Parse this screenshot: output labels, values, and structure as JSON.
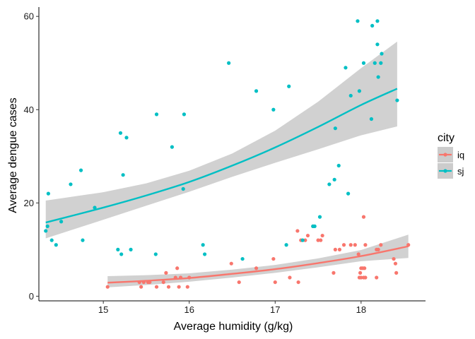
{
  "chart_data": {
    "type": "scatter",
    "xlabel": "Average humidity (g/kg)",
    "ylabel": "Average dengue cases",
    "xlim": [
      14.25,
      18.75
    ],
    "ylim": [
      -1,
      62
    ],
    "x_ticks": [
      15,
      16,
      17,
      18
    ],
    "y_ticks": [
      0,
      20,
      40,
      60
    ],
    "grid": false,
    "legend": {
      "title": "city",
      "placement": "right"
    },
    "series": [
      {
        "name": "iq",
        "color": "#F8766D",
        "points": [
          [
            15.05,
            2
          ],
          [
            15.42,
            3
          ],
          [
            15.44,
            2
          ],
          [
            15.47,
            3
          ],
          [
            15.52,
            3
          ],
          [
            15.54,
            3
          ],
          [
            15.62,
            2
          ],
          [
            15.7,
            3
          ],
          [
            15.73,
            5
          ],
          [
            15.76,
            2
          ],
          [
            15.84,
            4
          ],
          [
            15.86,
            6
          ],
          [
            15.88,
            2
          ],
          [
            15.9,
            4
          ],
          [
            15.98,
            2
          ],
          [
            16.0,
            4
          ],
          [
            16.49,
            7
          ],
          [
            16.58,
            3
          ],
          [
            16.78,
            6
          ],
          [
            16.98,
            8
          ],
          [
            17.0,
            3
          ],
          [
            17.17,
            4
          ],
          [
            17.26,
            14
          ],
          [
            17.27,
            3
          ],
          [
            17.3,
            12
          ],
          [
            17.35,
            12
          ],
          [
            17.38,
            13
          ],
          [
            17.44,
            15
          ],
          [
            17.5,
            12
          ],
          [
            17.53,
            12
          ],
          [
            17.55,
            13
          ],
          [
            17.68,
            5
          ],
          [
            17.7,
            10
          ],
          [
            17.75,
            10
          ],
          [
            17.8,
            11
          ],
          [
            17.88,
            11
          ],
          [
            17.93,
            11
          ],
          [
            17.97,
            9
          ],
          [
            17.98,
            4
          ],
          [
            17.99,
            5
          ],
          [
            18.0,
            6
          ],
          [
            18.0,
            4
          ],
          [
            18.02,
            6
          ],
          [
            18.03,
            17
          ],
          [
            18.03,
            4
          ],
          [
            18.04,
            6
          ],
          [
            18.05,
            4
          ],
          [
            18.05,
            11
          ],
          [
            18.18,
            4
          ],
          [
            18.18,
            10
          ],
          [
            18.2,
            10
          ],
          [
            18.23,
            11
          ],
          [
            18.38,
            8
          ],
          [
            18.4,
            7
          ],
          [
            18.41,
            5
          ],
          [
            18.55,
            11
          ]
        ],
        "fit_x": [
          15.05,
          15.5,
          16.0,
          16.5,
          17.0,
          17.5,
          18.0,
          18.55
        ],
        "fit_y": [
          2.9,
          3.3,
          3.9,
          4.8,
          5.8,
          7.1,
          8.6,
          10.7
        ],
        "ci_lower": [
          1.9,
          2.4,
          3.1,
          4.0,
          5.0,
          6.2,
          7.5,
          8.2
        ],
        "ci_upper": [
          4.3,
          4.5,
          4.9,
          5.7,
          6.7,
          8.1,
          9.9,
          13.2
        ]
      },
      {
        "name": "sj",
        "color": "#00BFC4",
        "points": [
          [
            14.33,
            14
          ],
          [
            14.35,
            15
          ],
          [
            14.36,
            22
          ],
          [
            14.4,
            12
          ],
          [
            14.45,
            11
          ],
          [
            14.51,
            16
          ],
          [
            14.62,
            24
          ],
          [
            14.74,
            27
          ],
          [
            14.76,
            12
          ],
          [
            14.9,
            19
          ],
          [
            15.17,
            10
          ],
          [
            15.2,
            35
          ],
          [
            15.21,
            9
          ],
          [
            15.23,
            26
          ],
          [
            15.27,
            34
          ],
          [
            15.32,
            10
          ],
          [
            15.61,
            9
          ],
          [
            15.62,
            39
          ],
          [
            15.8,
            32
          ],
          [
            15.93,
            23
          ],
          [
            15.94,
            39
          ],
          [
            16.16,
            11
          ],
          [
            16.18,
            9
          ],
          [
            16.46,
            50
          ],
          [
            16.62,
            8
          ],
          [
            16.78,
            44
          ],
          [
            16.98,
            40
          ],
          [
            17.13,
            11
          ],
          [
            17.16,
            45
          ],
          [
            17.32,
            12
          ],
          [
            17.44,
            15
          ],
          [
            17.46,
            15
          ],
          [
            17.52,
            17
          ],
          [
            17.63,
            24
          ],
          [
            17.69,
            25
          ],
          [
            17.7,
            36
          ],
          [
            17.74,
            28
          ],
          [
            17.82,
            49
          ],
          [
            17.85,
            22
          ],
          [
            17.88,
            43
          ],
          [
            17.96,
            59
          ],
          [
            17.98,
            44
          ],
          [
            18.03,
            50
          ],
          [
            18.12,
            38
          ],
          [
            18.13,
            58
          ],
          [
            18.16,
            50
          ],
          [
            18.19,
            59
          ],
          [
            18.19,
            54
          ],
          [
            18.2,
            47
          ],
          [
            18.23,
            50
          ],
          [
            18.24,
            52
          ],
          [
            18.42,
            42
          ]
        ],
        "fit_x": [
          14.33,
          15.0,
          15.5,
          16.0,
          16.5,
          17.0,
          17.5,
          18.0,
          18.42
        ],
        "fit_y": [
          15.8,
          19.0,
          21.6,
          24.5,
          28.0,
          31.9,
          36.3,
          41.0,
          44.5
        ],
        "ci_lower": [
          12.4,
          16.4,
          19.4,
          22.4,
          25.6,
          28.6,
          31.5,
          34.5,
          36.4
        ],
        "ci_upper": [
          20.5,
          22.3,
          24.2,
          26.9,
          30.6,
          35.5,
          41.7,
          48.9,
          54.6
        ]
      }
    ]
  },
  "colors": {
    "ribbon": "#cccccc",
    "axis": "#000000"
  }
}
